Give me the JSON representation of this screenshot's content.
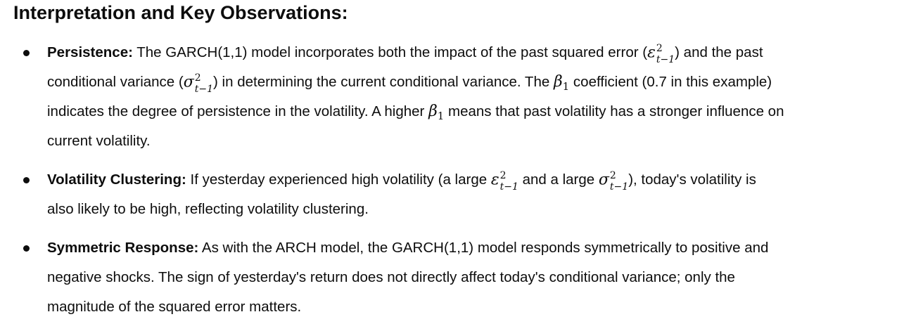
{
  "heading": "Interpretation and Key Observations:",
  "math": {
    "eps": {
      "base": "ε",
      "sup": "2",
      "sub": "t−1"
    },
    "sigma": {
      "base": "σ",
      "sup": "2",
      "sub": "t−1"
    },
    "beta": {
      "base": "β",
      "sub": "1"
    }
  },
  "bullets": [
    {
      "label": "Persistence:",
      "t1": " The GARCH(1,1) model incorporates both the impact of the past squared error (",
      "t2": ") and the past conditional variance (",
      "t3": ") in determining the current conditional variance. The ",
      "t4": " coefficient (0.7 in this example) indicates the degree of persistence in the volatility. A higher ",
      "t5": " means that past volatility has a stronger influence on current volatility."
    },
    {
      "label": "Volatility Clustering:",
      "t1": " If yesterday experienced high volatility (a large ",
      "t2": " and a large ",
      "t3": "), today's volatility is also likely to be high, reflecting volatility clustering."
    },
    {
      "label": "Symmetric Response:",
      "t1": " As with the ARCH model, the GARCH(1,1) model responds symmetrically to positive and negative shocks. The sign of yesterday's return does not directly affect today's conditional variance; only the magnitude of the squared error matters."
    }
  ]
}
